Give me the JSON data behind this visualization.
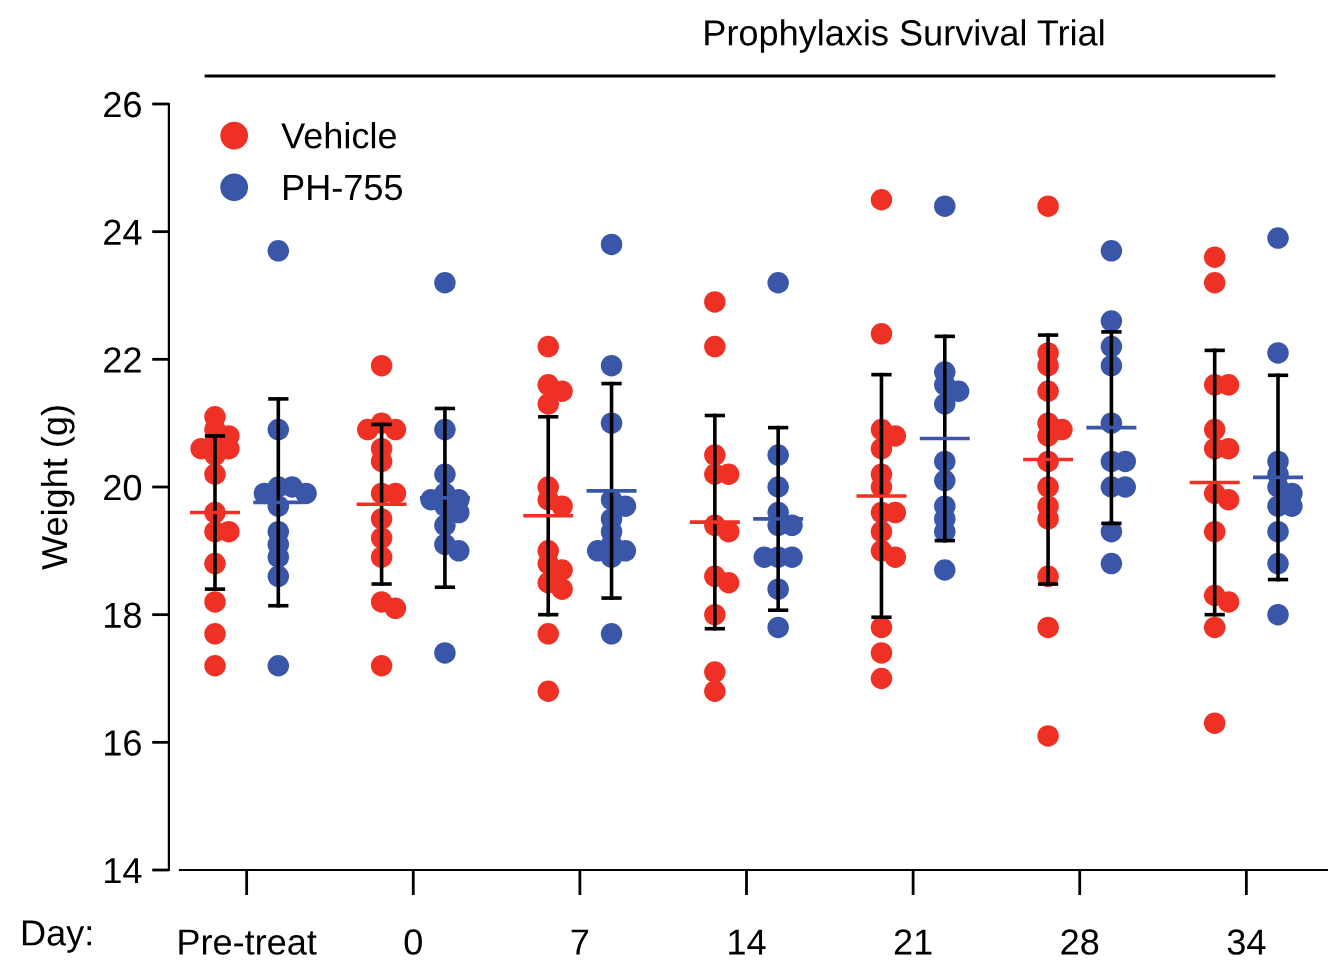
{
  "chart_data": {
    "type": "scatter",
    "title": "Prophylaxis Survival Trial",
    "xlabel": "Day:",
    "ylabel": "Weight (g)",
    "categories": [
      "Pre-treat",
      "0",
      "7",
      "14",
      "21",
      "28",
      "34"
    ],
    "ylim": [
      14,
      26
    ],
    "yticks": [
      14,
      16,
      18,
      20,
      22,
      24,
      26
    ],
    "grid": false,
    "legend": "top left",
    "marker": "circle",
    "series": [
      {
        "name": "Vehicle",
        "color": "#ee3124",
        "x": [
          "Pre-treat",
          "Pre-treat",
          "Pre-treat",
          "Pre-treat",
          "Pre-treat",
          "Pre-treat",
          "Pre-treat",
          "Pre-treat",
          "Pre-treat",
          "Pre-treat",
          "Pre-treat",
          "Pre-treat",
          "Pre-treat",
          "Pre-treat",
          "Pre-treat",
          "0",
          "0",
          "0",
          "0",
          "0",
          "0",
          "0",
          "0",
          "0",
          "0",
          "0",
          "0",
          "0",
          "0",
          "7",
          "7",
          "7",
          "7",
          "7",
          "7",
          "7",
          "7",
          "7",
          "7",
          "7",
          "7",
          "7",
          "7",
          "14",
          "14",
          "14",
          "14",
          "14",
          "14",
          "14",
          "14",
          "14",
          "14",
          "14",
          "14",
          "21",
          "21",
          "21",
          "21",
          "21",
          "21",
          "21",
          "21",
          "21",
          "21",
          "21",
          "21",
          "21",
          "21",
          "21",
          "28",
          "28",
          "28",
          "28",
          "28",
          "28",
          "28",
          "28",
          "28",
          "28",
          "28",
          "28",
          "28",
          "28",
          "34",
          "34",
          "34",
          "34",
          "34",
          "34",
          "34",
          "34",
          "34",
          "34",
          "34",
          "34",
          "34",
          "34"
        ],
        "values": [
          21.1,
          20.9,
          20.8,
          20.7,
          20.6,
          20.6,
          20.5,
          20.2,
          19.6,
          19.3,
          19.3,
          18.8,
          18.2,
          17.7,
          17.2,
          21.9,
          21.0,
          20.9,
          20.9,
          20.6,
          20.4,
          19.9,
          19.9,
          19.5,
          19.2,
          18.9,
          18.2,
          18.1,
          17.2,
          22.2,
          21.6,
          21.5,
          21.3,
          20.0,
          19.8,
          19.7,
          19.0,
          18.8,
          18.7,
          18.5,
          18.4,
          17.7,
          16.8,
          22.9,
          22.2,
          20.5,
          20.2,
          20.2,
          19.4,
          19.3,
          18.6,
          18.5,
          18.0,
          17.1,
          16.8,
          24.5,
          22.4,
          20.9,
          20.8,
          20.6,
          20.2,
          20.0,
          19.6,
          19.6,
          19.3,
          19.0,
          18.9,
          17.8,
          17.4,
          17.0,
          24.4,
          22.1,
          21.9,
          21.5,
          21.0,
          20.9,
          20.8,
          20.4,
          20.0,
          19.7,
          19.5,
          18.6,
          17.8,
          16.1,
          23.6,
          23.2,
          21.6,
          21.6,
          20.9,
          20.6,
          20.6,
          19.9,
          19.8,
          19.3,
          18.3,
          18.2,
          17.8,
          16.3
        ]
      },
      {
        "name": "PH-755",
        "color": "#3a56a8",
        "x": [
          "Pre-treat",
          "Pre-treat",
          "Pre-treat",
          "Pre-treat",
          "Pre-treat",
          "Pre-treat",
          "Pre-treat",
          "Pre-treat",
          "Pre-treat",
          "Pre-treat",
          "Pre-treat",
          "Pre-treat",
          "0",
          "0",
          "0",
          "0",
          "0",
          "0",
          "0",
          "0",
          "0",
          "0",
          "0",
          "0",
          "7",
          "7",
          "7",
          "7",
          "7",
          "7",
          "7",
          "7",
          "7",
          "7",
          "7",
          "7",
          "14",
          "14",
          "14",
          "14",
          "14",
          "14",
          "14",
          "14",
          "14",
          "14",
          "14",
          "21",
          "21",
          "21",
          "21",
          "21",
          "21",
          "21",
          "21",
          "21",
          "21",
          "21",
          "28",
          "28",
          "28",
          "28",
          "28",
          "28",
          "28",
          "28",
          "28",
          "28",
          "28",
          "34",
          "34",
          "34",
          "34",
          "34",
          "34",
          "34",
          "34",
          "34",
          "34",
          "34"
        ],
        "values": [
          23.7,
          20.9,
          20.0,
          20.0,
          19.9,
          19.9,
          19.7,
          19.3,
          19.1,
          18.9,
          18.6,
          17.2,
          23.2,
          20.9,
          20.2,
          19.9,
          19.8,
          19.8,
          19.7,
          19.6,
          19.4,
          19.1,
          19.0,
          17.4,
          23.8,
          21.9,
          21.0,
          19.8,
          19.7,
          19.5,
          19.3,
          19.1,
          19.0,
          19.0,
          18.9,
          17.7,
          23.2,
          20.5,
          20.0,
          19.6,
          19.4,
          19.4,
          18.9,
          18.9,
          18.9,
          18.4,
          17.8,
          24.4,
          21.8,
          21.6,
          21.5,
          21.3,
          20.4,
          20.1,
          19.7,
          19.5,
          19.3,
          18.7,
          23.7,
          22.6,
          22.2,
          21.9,
          21.0,
          20.4,
          20.4,
          20.0,
          20.0,
          19.3,
          18.8,
          23.9,
          22.1,
          20.4,
          20.2,
          20.0,
          19.9,
          19.7,
          19.7,
          19.3,
          18.8,
          18.0
        ]
      },
      {
        "type": "box",
        "color": "#ee3124",
        "boxes": [
          {
            "low": 18.4,
            "q1": 19.6,
            "median": 19.6,
            "q3": 19.6,
            "high": 20.8
          },
          {
            "low": 18.48,
            "q1": 19.73,
            "median": 19.73,
            "q3": 19.73,
            "high": 20.98
          },
          {
            "low": 18.0,
            "q1": 19.55,
            "median": 19.55,
            "q3": 19.55,
            "high": 21.1
          },
          {
            "low": 17.78,
            "q1": 19.45,
            "median": 19.45,
            "q3": 19.45,
            "high": 21.12
          },
          {
            "low": 17.96,
            "q1": 19.86,
            "median": 19.86,
            "q3": 19.86,
            "high": 21.76
          },
          {
            "low": 18.48,
            "q1": 20.43,
            "median": 20.43,
            "q3": 20.43,
            "high": 22.38
          },
          {
            "low": 18.0,
            "q1": 20.07,
            "median": 20.07,
            "q3": 20.07,
            "high": 22.14
          }
        ]
      },
      {
        "type": "box",
        "color": "#3a56a8",
        "boxes": [
          {
            "low": 18.14,
            "q1": 19.76,
            "median": 19.76,
            "q3": 19.76,
            "high": 21.38
          },
          {
            "low": 18.43,
            "q1": 19.83,
            "median": 19.83,
            "q3": 19.83,
            "high": 21.23
          },
          {
            "low": 18.26,
            "q1": 19.94,
            "median": 19.94,
            "q3": 19.94,
            "high": 21.62
          },
          {
            "low": 18.07,
            "q1": 19.5,
            "median": 19.5,
            "q3": 19.5,
            "high": 20.93
          },
          {
            "low": 19.16,
            "q1": 20.76,
            "median": 20.76,
            "q3": 20.76,
            "high": 22.36
          },
          {
            "low": 19.43,
            "q1": 20.93,
            "median": 20.93,
            "q3": 20.93,
            "high": 22.43
          },
          {
            "low": 18.55,
            "q1": 20.15,
            "median": 20.15,
            "q3": 20.15,
            "high": 21.75
          }
        ]
      }
    ]
  }
}
